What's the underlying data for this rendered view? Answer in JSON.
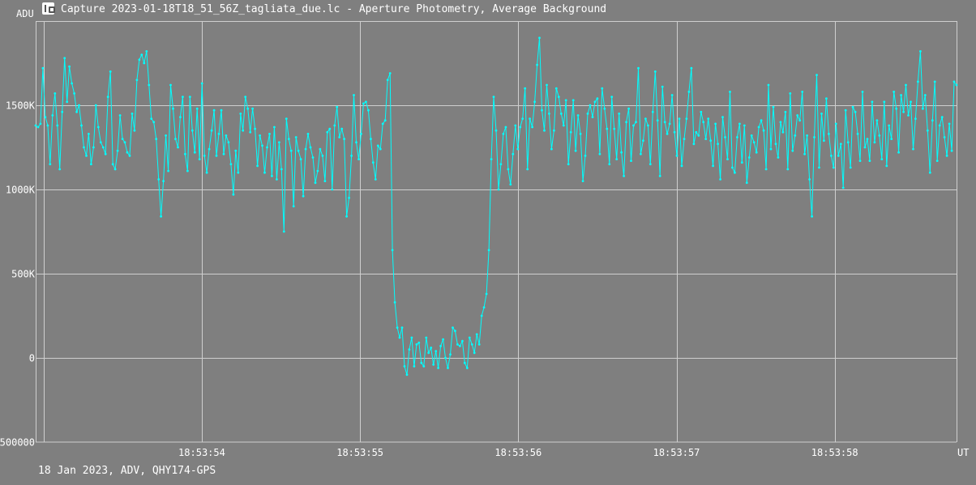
{
  "window": {
    "title": "Capture 2023-01-18T18_51_56Z_tagliata_due.lc - Aperture Photometry, Average Background",
    "icon": "light-curve-app-icon"
  },
  "footer": {
    "info": "18 Jan 2023, ADV, QHY174-GPS"
  },
  "colors": {
    "background": "#7f7f7f",
    "grid": "#cfcfcf",
    "series": "#00ffff",
    "text": "#ffffff"
  },
  "chart_data": {
    "type": "line",
    "title": "",
    "xlabel": "UT",
    "ylabel": "ADU",
    "grid": true,
    "ylim": [
      -500000,
      2000000
    ],
    "xlim_seconds": [
      52.95,
      58.77
    ],
    "y_ticks": [
      {
        "value": -500000,
        "label": "-500000"
      },
      {
        "value": 0,
        "label": "0"
      },
      {
        "value": 500000,
        "label": "500K"
      },
      {
        "value": 1000000,
        "label": "1000K"
      },
      {
        "value": 1500000,
        "label": "1500K"
      }
    ],
    "x_ticks": [
      {
        "value": 54,
        "label": "18:53:54"
      },
      {
        "value": 55,
        "label": "18:53:55"
      },
      {
        "value": 56,
        "label": "18:53:56"
      },
      {
        "value": 57,
        "label": "18:53:57"
      },
      {
        "value": 58,
        "label": "18:53:58"
      }
    ],
    "series": [
      {
        "time_start": "18:53:52.95",
        "time_end": "18:53:58.77",
        "values": [
          1380000,
          1370000,
          1390000,
          1720000,
          1430000,
          1380000,
          1150000,
          1440000,
          1570000,
          1380000,
          1120000,
          1460000,
          1780000,
          1520000,
          1730000,
          1630000,
          1570000,
          1460000,
          1500000,
          1380000,
          1250000,
          1200000,
          1330000,
          1150000,
          1250000,
          1500000,
          1370000,
          1280000,
          1250000,
          1210000,
          1550000,
          1700000,
          1150000,
          1120000,
          1230000,
          1440000,
          1300000,
          1280000,
          1220000,
          1200000,
          1450000,
          1350000,
          1650000,
          1770000,
          1800000,
          1750000,
          1820000,
          1620000,
          1420000,
          1400000,
          1300000,
          1060000,
          840000,
          1050000,
          1320000,
          1110000,
          1620000,
          1480000,
          1300000,
          1250000,
          1430000,
          1550000,
          1210000,
          1110000,
          1550000,
          1350000,
          1220000,
          1480000,
          1180000,
          1630000,
          1200000,
          1100000,
          1240000,
          1350000,
          1470000,
          1200000,
          1330000,
          1470000,
          1210000,
          1320000,
          1280000,
          1150000,
          970000,
          1230000,
          1100000,
          1450000,
          1350000,
          1550000,
          1480000,
          1340000,
          1480000,
          1360000,
          1140000,
          1320000,
          1260000,
          1100000,
          1250000,
          1330000,
          1080000,
          1370000,
          1060000,
          1280000,
          1120000,
          750000,
          1420000,
          1300000,
          1230000,
          900000,
          1310000,
          1230000,
          1180000,
          960000,
          1240000,
          1330000,
          1250000,
          1190000,
          1040000,
          1110000,
          1240000,
          1200000,
          1050000,
          1340000,
          1360000,
          1000000,
          1380000,
          1490000,
          1310000,
          1360000,
          1300000,
          840000,
          950000,
          1200000,
          1560000,
          1280000,
          1180000,
          1330000,
          1510000,
          1520000,
          1470000,
          1300000,
          1160000,
          1060000,
          1260000,
          1240000,
          1390000,
          1410000,
          1650000,
          1690000,
          640000,
          330000,
          180000,
          120000,
          180000,
          -50000,
          -100000,
          50000,
          120000,
          -50000,
          80000,
          90000,
          -30000,
          -50000,
          120000,
          30000,
          60000,
          -40000,
          40000,
          -60000,
          70000,
          110000,
          0,
          -60000,
          20000,
          180000,
          160000,
          80000,
          70000,
          100000,
          -30000,
          -60000,
          120000,
          80000,
          30000,
          140000,
          80000,
          250000,
          300000,
          380000,
          640000,
          1180000,
          1550000,
          1350000,
          1000000,
          1150000,
          1330000,
          1370000,
          1120000,
          1030000,
          1210000,
          1380000,
          1240000,
          1370000,
          1420000,
          1600000,
          1120000,
          1420000,
          1370000,
          1520000,
          1740000,
          1900000,
          1470000,
          1350000,
          1620000,
          1450000,
          1240000,
          1350000,
          1600000,
          1550000,
          1450000,
          1380000,
          1530000,
          1150000,
          1340000,
          1530000,
          1230000,
          1440000,
          1330000,
          1050000,
          1200000,
          1450000,
          1500000,
          1430000,
          1520000,
          1540000,
          1210000,
          1600000,
          1480000,
          1360000,
          1150000,
          1550000,
          1360000,
          1180000,
          1450000,
          1220000,
          1080000,
          1400000,
          1480000,
          1170000,
          1380000,
          1400000,
          1720000,
          1210000,
          1290000,
          1420000,
          1380000,
          1150000,
          1460000,
          1700000,
          1410000,
          1080000,
          1610000,
          1400000,
          1330000,
          1390000,
          1560000,
          1340000,
          1200000,
          1420000,
          1140000,
          1300000,
          1420000,
          1580000,
          1720000,
          1270000,
          1340000,
          1320000,
          1460000,
          1400000,
          1300000,
          1420000,
          1290000,
          1140000,
          1390000,
          1270000,
          1060000,
          1430000,
          1310000,
          1180000,
          1580000,
          1130000,
          1100000,
          1310000,
          1390000,
          1160000,
          1380000,
          1040000,
          1190000,
          1320000,
          1280000,
          1220000,
          1370000,
          1410000,
          1350000,
          1120000,
          1620000,
          1240000,
          1490000,
          1270000,
          1190000,
          1400000,
          1340000,
          1460000,
          1120000,
          1570000,
          1230000,
          1320000,
          1440000,
          1410000,
          1580000,
          1210000,
          1320000,
          1060000,
          840000,
          1310000,
          1680000,
          1130000,
          1450000,
          1290000,
          1540000,
          1330000,
          1200000,
          1130000,
          1390000,
          1200000,
          1270000,
          1010000,
          1470000,
          1280000,
          1130000,
          1490000,
          1460000,
          1330000,
          1170000,
          1580000,
          1250000,
          1300000,
          1170000,
          1520000,
          1280000,
          1410000,
          1320000,
          1180000,
          1520000,
          1140000,
          1380000,
          1300000,
          1580000,
          1480000,
          1220000,
          1560000,
          1460000,
          1620000,
          1440000,
          1520000,
          1240000,
          1420000,
          1640000,
          1820000,
          1480000,
          1560000,
          1350000,
          1100000,
          1410000,
          1640000,
          1170000,
          1380000,
          1430000,
          1310000,
          1200000,
          1390000,
          1230000,
          1640000,
          1620000
        ]
      }
    ]
  }
}
